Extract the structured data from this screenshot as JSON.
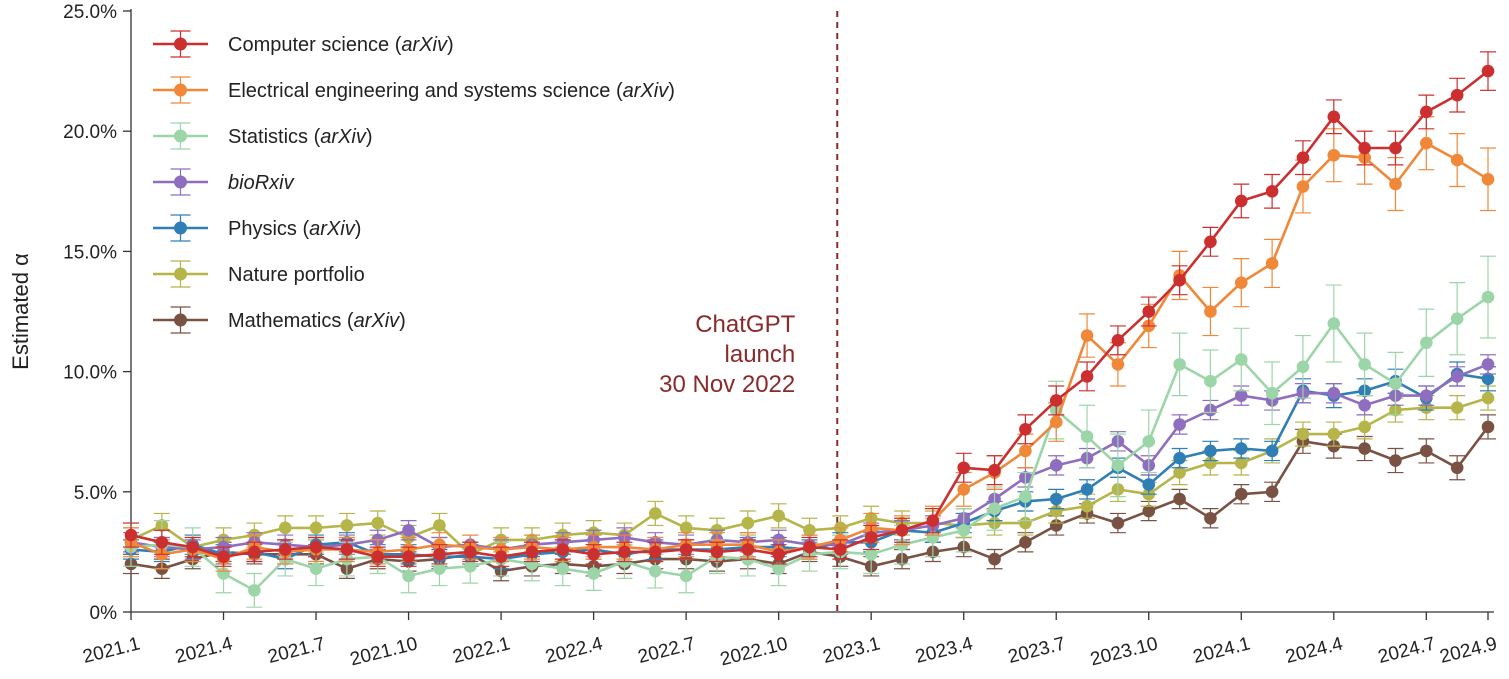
{
  "chart_data": {
    "type": "line",
    "title": "",
    "xlabel": "",
    "ylabel": "Estimated α",
    "ylim": [
      0,
      25
    ],
    "y_ticks": [
      "0%",
      "5.0%",
      "10.0%",
      "15.0%",
      "20.0%",
      "25.0%"
    ],
    "y_tick_values": [
      0,
      5,
      10,
      15,
      20,
      25
    ],
    "x_ticks": [
      "2021.1",
      "2021.4",
      "2021.7",
      "2021.10",
      "2022.1",
      "2022.4",
      "2022.7",
      "2022.10",
      "2023.1",
      "2023.4",
      "2023.7",
      "2023.10",
      "2024.1",
      "2024.4",
      "2024.7",
      "2024.9"
    ],
    "x_tick_indices": [
      0,
      3,
      6,
      9,
      12,
      15,
      18,
      21,
      24,
      27,
      30,
      33,
      36,
      39,
      42,
      44
    ],
    "x": [
      "2021.1",
      "2021.2",
      "2021.3",
      "2021.4",
      "2021.5",
      "2021.6",
      "2021.7",
      "2021.8",
      "2021.9",
      "2021.10",
      "2021.11",
      "2021.12",
      "2022.1",
      "2022.2",
      "2022.3",
      "2022.4",
      "2022.5",
      "2022.6",
      "2022.7",
      "2022.8",
      "2022.9",
      "2022.10",
      "2022.11",
      "2022.12",
      "2023.1",
      "2023.2",
      "2023.3",
      "2023.4",
      "2023.5",
      "2023.6",
      "2023.7",
      "2023.8",
      "2023.9",
      "2023.10",
      "2023.11",
      "2023.12",
      "2024.1",
      "2024.2",
      "2024.3",
      "2024.4",
      "2024.5",
      "2024.6",
      "2024.7",
      "2024.8",
      "2024.9"
    ],
    "legend_position": "top-left",
    "grid": false,
    "annotation": {
      "lines": [
        "ChatGPT",
        "launch",
        "30 Nov 2022"
      ],
      "x_index": 22.9,
      "color": "#8a2a2a"
    },
    "series": [
      {
        "name": "Computer science",
        "source": "arXiv",
        "color": "#cc2f2f",
        "values": [
          3.2,
          2.9,
          2.7,
          2.3,
          2.5,
          2.6,
          2.7,
          2.6,
          2.3,
          2.3,
          2.4,
          2.5,
          2.3,
          2.5,
          2.6,
          2.4,
          2.5,
          2.5,
          2.6,
          2.5,
          2.6,
          2.4,
          2.7,
          2.6,
          3.1,
          3.4,
          3.8,
          6.0,
          5.9,
          7.6,
          8.8,
          9.8,
          11.3,
          12.5,
          13.8,
          15.4,
          17.1,
          17.5,
          18.9,
          20.6,
          19.3,
          19.3,
          20.8,
          21.5,
          22.5
        ],
        "errors": [
          0.5,
          0.5,
          0.4,
          0.4,
          0.4,
          0.4,
          0.4,
          0.4,
          0.4,
          0.4,
          0.4,
          0.4,
          0.4,
          0.4,
          0.4,
          0.4,
          0.4,
          0.4,
          0.4,
          0.4,
          0.4,
          0.4,
          0.4,
          0.4,
          0.5,
          0.5,
          0.5,
          0.6,
          0.6,
          0.6,
          0.6,
          0.6,
          0.6,
          0.6,
          0.6,
          0.6,
          0.7,
          0.7,
          0.7,
          0.7,
          0.7,
          0.7,
          0.7,
          0.7,
          0.8
        ]
      },
      {
        "name": "Electrical engineering and systems science",
        "source": "arXiv",
        "color": "#f0883a",
        "values": [
          2.9,
          2.4,
          2.6,
          2.2,
          2.7,
          2.5,
          2.6,
          2.6,
          2.5,
          2.6,
          2.8,
          2.7,
          2.6,
          2.7,
          2.6,
          2.7,
          2.7,
          2.6,
          2.8,
          2.8,
          2.8,
          2.5,
          2.7,
          3.0,
          3.5,
          3.4,
          3.8,
          5.1,
          5.8,
          6.7,
          7.9,
          11.5,
          10.3,
          11.9,
          14.0,
          12.5,
          13.7,
          14.5,
          17.7,
          19.0,
          18.9,
          17.8,
          19.5,
          18.8,
          18.0
        ],
        "errors": [
          0.6,
          0.6,
          0.5,
          0.5,
          0.5,
          0.5,
          0.5,
          0.5,
          0.5,
          0.5,
          0.5,
          0.5,
          0.5,
          0.5,
          0.5,
          0.5,
          0.5,
          0.5,
          0.5,
          0.5,
          0.5,
          0.5,
          0.5,
          0.5,
          0.6,
          0.6,
          0.6,
          0.7,
          0.7,
          0.7,
          0.8,
          0.9,
          0.9,
          0.9,
          1.0,
          1.0,
          1.0,
          1.0,
          1.1,
          1.1,
          1.1,
          1.1,
          1.1,
          1.1,
          1.3
        ]
      },
      {
        "name": "Statistics",
        "source": "arXiv",
        "color": "#9cd6a8",
        "values": [
          2.7,
          2.8,
          2.7,
          1.6,
          0.9,
          2.2,
          1.8,
          2.2,
          2.3,
          1.5,
          1.8,
          1.9,
          2.2,
          2.0,
          1.8,
          1.6,
          2.1,
          1.7,
          1.5,
          2.3,
          2.2,
          1.8,
          2.4,
          2.5,
          2.4,
          2.8,
          3.1,
          3.4,
          4.3,
          4.8,
          8.4,
          7.3,
          6.1,
          7.1,
          10.3,
          9.6,
          10.5,
          9.1,
          10.2,
          12.0,
          10.3,
          9.5,
          11.2,
          12.2,
          13.1
        ],
        "errors": [
          0.8,
          1.0,
          0.8,
          0.8,
          0.7,
          0.7,
          0.7,
          0.7,
          0.7,
          0.7,
          0.7,
          0.7,
          0.7,
          0.7,
          0.7,
          0.7,
          0.7,
          0.7,
          0.7,
          0.7,
          0.7,
          0.7,
          0.7,
          0.7,
          0.8,
          0.8,
          0.8,
          0.9,
          0.9,
          1.0,
          1.2,
          1.3,
          1.3,
          1.3,
          1.3,
          1.3,
          1.3,
          1.3,
          1.3,
          1.6,
          1.3,
          1.3,
          1.4,
          1.5,
          1.7
        ]
      },
      {
        "name": "bioRxiv",
        "source": "",
        "color": "#8f6dbf",
        "values": [
          2.9,
          2.7,
          2.6,
          2.7,
          2.9,
          2.8,
          2.7,
          2.8,
          3.0,
          3.4,
          2.7,
          2.8,
          2.6,
          2.8,
          2.9,
          3.0,
          3.1,
          2.9,
          2.8,
          3.0,
          2.9,
          3.0,
          2.8,
          2.8,
          3.3,
          3.4,
          3.6,
          3.9,
          4.7,
          5.6,
          6.1,
          6.4,
          7.1,
          6.1,
          7.8,
          8.4,
          9.0,
          8.8,
          9.1,
          9.1,
          8.6,
          9.0,
          9.0,
          9.8,
          10.3
        ],
        "errors": [
          0.4,
          0.4,
          0.4,
          0.4,
          0.4,
          0.4,
          0.4,
          0.4,
          0.4,
          0.4,
          0.4,
          0.4,
          0.4,
          0.4,
          0.4,
          0.4,
          0.4,
          0.4,
          0.4,
          0.4,
          0.4,
          0.4,
          0.4,
          0.4,
          0.4,
          0.4,
          0.4,
          0.4,
          0.4,
          0.4,
          0.4,
          0.4,
          0.4,
          0.4,
          0.4,
          0.4,
          0.4,
          0.4,
          0.4,
          0.4,
          0.4,
          0.4,
          0.4,
          0.4,
          0.4
        ]
      },
      {
        "name": "Physics",
        "source": "arXiv",
        "color": "#2f7fb6",
        "values": [
          2.6,
          2.5,
          2.8,
          2.4,
          2.5,
          2.2,
          2.8,
          2.9,
          2.4,
          2.4,
          2.3,
          2.3,
          2.2,
          2.4,
          2.5,
          2.6,
          2.4,
          2.6,
          2.6,
          2.6,
          2.7,
          2.7,
          2.6,
          2.9,
          2.9,
          3.4,
          3.3,
          3.7,
          4.2,
          4.6,
          4.7,
          5.1,
          6.0,
          5.3,
          6.4,
          6.7,
          6.8,
          6.7,
          9.2,
          9.0,
          9.2,
          9.6,
          8.9,
          9.9,
          9.7
        ],
        "errors": [
          0.4,
          0.4,
          0.4,
          0.4,
          0.4,
          0.4,
          0.4,
          0.4,
          0.4,
          0.4,
          0.4,
          0.4,
          0.4,
          0.4,
          0.4,
          0.4,
          0.4,
          0.4,
          0.4,
          0.4,
          0.4,
          0.4,
          0.4,
          0.4,
          0.4,
          0.4,
          0.4,
          0.4,
          0.4,
          0.4,
          0.4,
          0.4,
          0.4,
          0.4,
          0.4,
          0.4,
          0.4,
          0.4,
          0.5,
          0.5,
          0.5,
          0.5,
          0.5,
          0.5,
          0.5
        ]
      },
      {
        "name": "Nature portfolio",
        "source": "",
        "color": "#b5b54a",
        "values": [
          3.0,
          3.6,
          2.7,
          3.0,
          3.2,
          3.5,
          3.5,
          3.6,
          3.7,
          3.1,
          3.6,
          2.4,
          3.0,
          3.0,
          3.2,
          3.3,
          3.2,
          4.1,
          3.5,
          3.4,
          3.7,
          4.0,
          3.4,
          3.5,
          3.9,
          3.7,
          3.7,
          3.6,
          3.7,
          3.7,
          4.2,
          4.4,
          5.1,
          4.9,
          5.8,
          6.2,
          6.2,
          6.7,
          7.4,
          7.4,
          7.7,
          8.4,
          8.5,
          8.5,
          8.9
        ],
        "errors": [
          0.5,
          0.5,
          0.5,
          0.5,
          0.5,
          0.5,
          0.5,
          0.5,
          0.5,
          0.5,
          0.5,
          0.5,
          0.5,
          0.5,
          0.5,
          0.5,
          0.5,
          0.5,
          0.5,
          0.5,
          0.5,
          0.5,
          0.5,
          0.5,
          0.5,
          0.5,
          0.5,
          0.5,
          0.5,
          0.5,
          0.5,
          0.5,
          0.5,
          0.5,
          0.5,
          0.5,
          0.5,
          0.5,
          0.5,
          0.5,
          0.5,
          0.5,
          0.5,
          0.5,
          0.5
        ]
      },
      {
        "name": "Mathematics",
        "source": "arXiv",
        "color": "#7a5244",
        "values": [
          2.0,
          1.8,
          2.2,
          2.5,
          2.4,
          2.4,
          2.4,
          1.8,
          2.2,
          2.1,
          2.2,
          2.4,
          1.7,
          1.9,
          2.0,
          1.9,
          2.0,
          2.2,
          2.2,
          2.1,
          2.2,
          2.0,
          2.5,
          2.3,
          1.9,
          2.2,
          2.5,
          2.7,
          2.2,
          2.9,
          3.6,
          4.1,
          3.7,
          4.2,
          4.7,
          3.9,
          4.9,
          5.0,
          7.1,
          6.9,
          6.8,
          6.3,
          6.7,
          6.0,
          7.7
        ],
        "errors": [
          0.4,
          0.4,
          0.4,
          0.4,
          0.4,
          0.4,
          0.4,
          0.4,
          0.4,
          0.4,
          0.4,
          0.4,
          0.4,
          0.4,
          0.4,
          0.4,
          0.4,
          0.4,
          0.4,
          0.4,
          0.4,
          0.4,
          0.4,
          0.4,
          0.4,
          0.4,
          0.4,
          0.4,
          0.4,
          0.4,
          0.4,
          0.4,
          0.4,
          0.4,
          0.4,
          0.4,
          0.4,
          0.4,
          0.5,
          0.5,
          0.5,
          0.5,
          0.5,
          0.5,
          0.5
        ]
      }
    ]
  }
}
